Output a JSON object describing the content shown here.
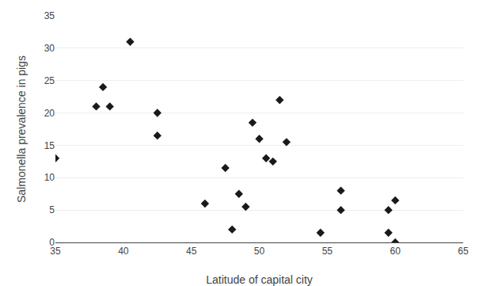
{
  "chart_data": {
    "type": "scatter",
    "x": [
      35,
      38,
      38.5,
      39,
      40.5,
      42.5,
      42.5,
      46,
      47.5,
      48,
      48.5,
      49,
      49.5,
      50,
      50.5,
      51,
      51.5,
      52,
      54.5,
      56,
      56,
      59.5,
      59.5,
      60,
      60
    ],
    "y": [
      13,
      21,
      24,
      21,
      31,
      16.5,
      20,
      6,
      11.5,
      2,
      7.5,
      5.5,
      18.5,
      16,
      13,
      12.5,
      22,
      15.5,
      1.5,
      5,
      8,
      5,
      1.5,
      0,
      6.5
    ],
    "xlabel": "Latitude of capital city",
    "ylabel": "Salmonella prevalence in pigs",
    "xlim": [
      35,
      65
    ],
    "ylim": [
      0,
      35
    ],
    "xticks": [
      35,
      40,
      45,
      50,
      55,
      60,
      65
    ],
    "yticks": [
      0,
      5,
      10,
      15,
      20,
      25,
      30,
      35
    ],
    "color": "#1a1a1a",
    "marker": "diamond",
    "grid": "y"
  }
}
